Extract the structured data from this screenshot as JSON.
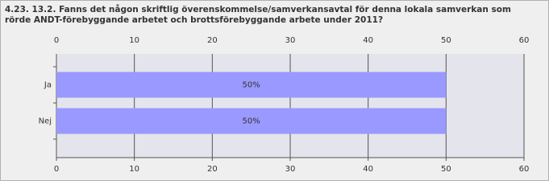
{
  "chart_data": {
    "type": "bar",
    "orientation": "horizontal",
    "title": [
      "4.23. 13.2. Fanns det någon skriftlig överenskommelse/samverkansavtal för denna lokala samverkan som",
      "rörde ANDT-förebyggande arbetet och brottsförebyggande arbete under 2011?"
    ],
    "categories": [
      "Ja",
      "Nej"
    ],
    "values": [
      50,
      50
    ],
    "value_labels": [
      "50%",
      "50%"
    ],
    "color": "#9999ff",
    "xlim": [
      0,
      60
    ],
    "xticks": [
      0,
      10,
      20,
      30,
      40,
      50,
      60
    ],
    "grid": true
  }
}
